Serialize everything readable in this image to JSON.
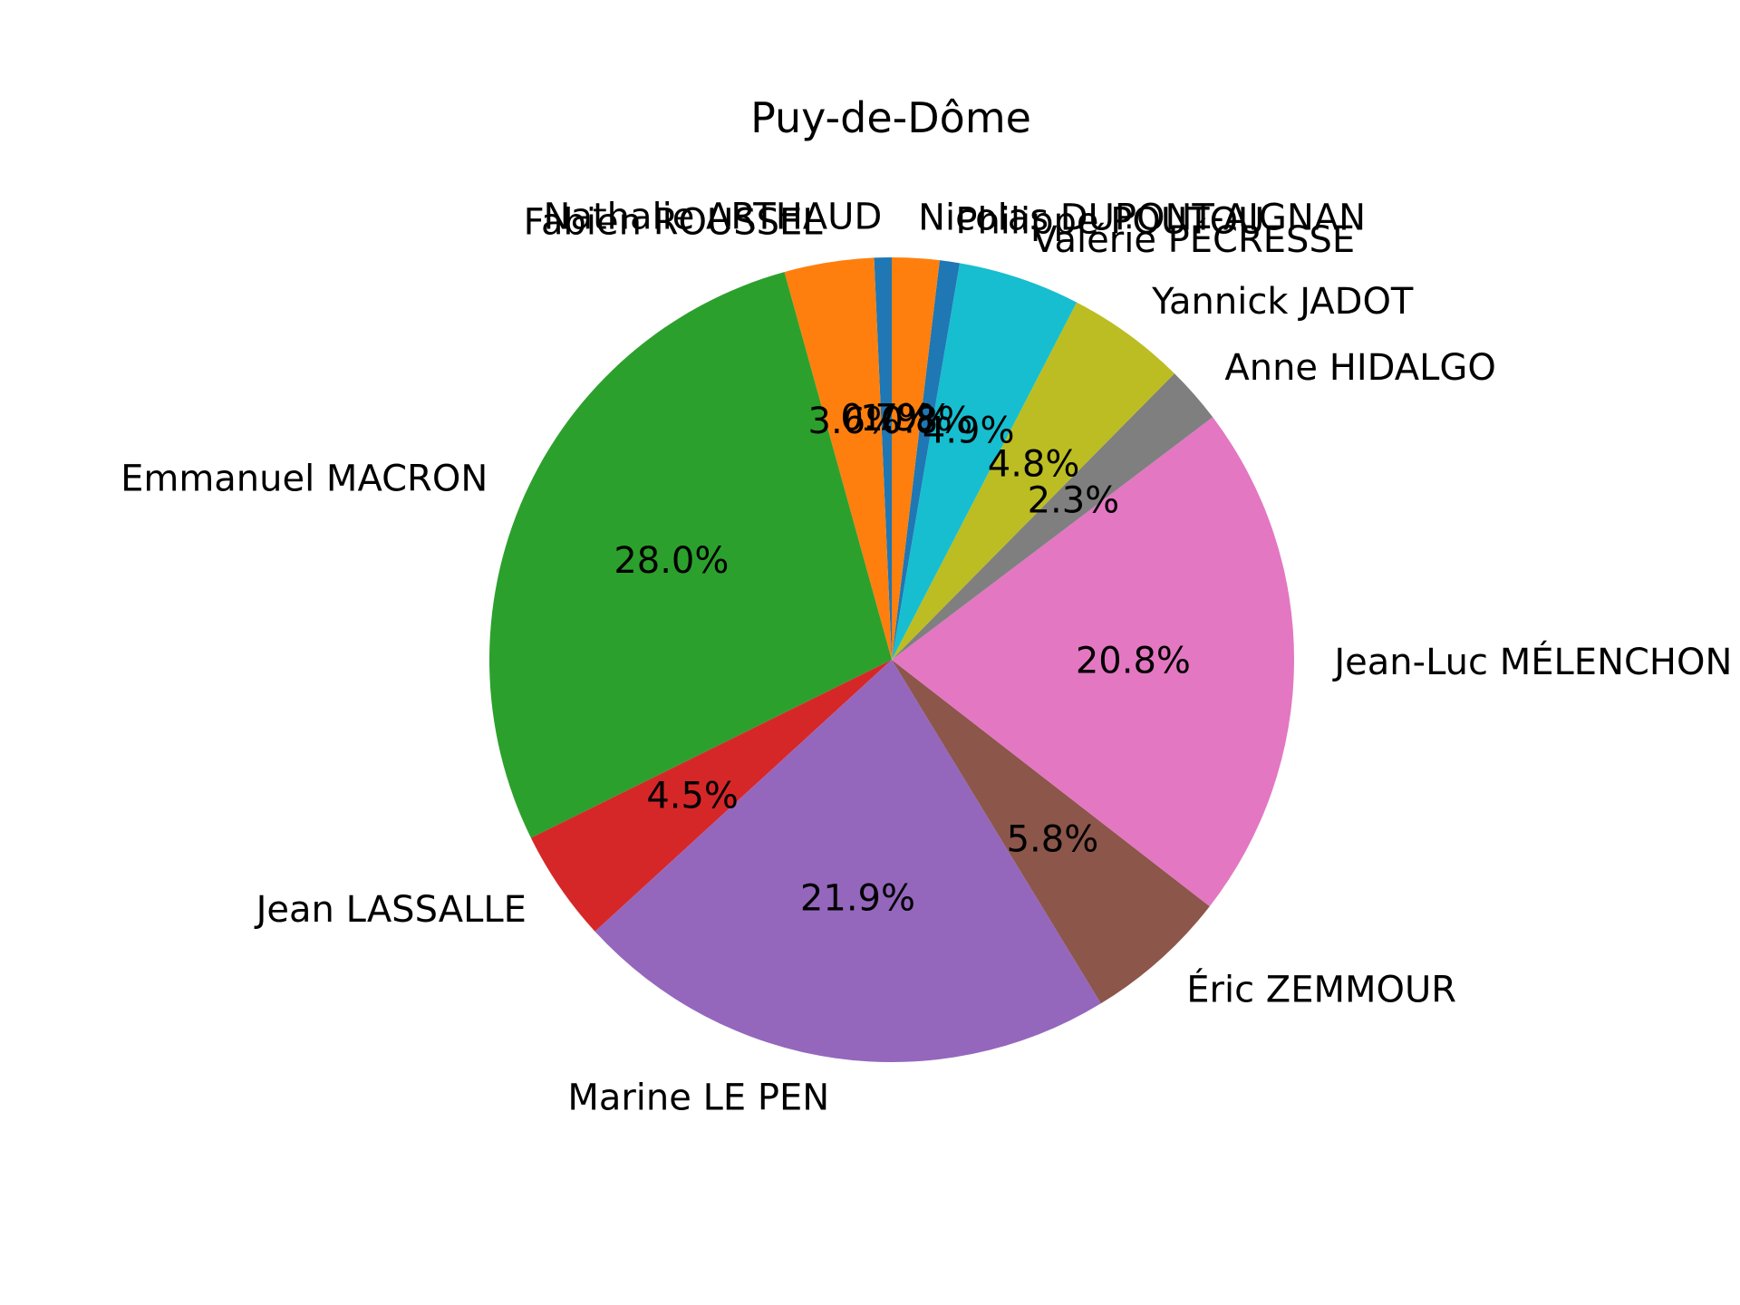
{
  "chart_data": {
    "type": "pie",
    "title": "Puy-de-Dôme",
    "slices": [
      {
        "label": "Nathalie ARTHAUD",
        "value": 0.7,
        "pct_label": "0.7%",
        "color": "#1f77b4"
      },
      {
        "label": "Fabien ROUSSEL",
        "value": 3.6,
        "pct_label": "3.6%",
        "color": "#ff7f0e"
      },
      {
        "label": "Emmanuel MACRON",
        "value": 28.0,
        "pct_label": "28.0%",
        "color": "#2ca02c"
      },
      {
        "label": "Jean LASSALLE",
        "value": 4.5,
        "pct_label": "4.5%",
        "color": "#d62728"
      },
      {
        "label": "Marine LE PEN",
        "value": 21.9,
        "pct_label": "21.9%",
        "color": "#9467bd"
      },
      {
        "label": "Éric ZEMMOUR",
        "value": 5.8,
        "pct_label": "5.8%",
        "color": "#8c564b"
      },
      {
        "label": "Jean-Luc MÉLENCHON",
        "value": 20.8,
        "pct_label": "20.8%",
        "color": "#e377c2"
      },
      {
        "label": "Anne HIDALGO",
        "value": 2.3,
        "pct_label": "2.3%",
        "color": "#7f7f7f"
      },
      {
        "label": "Yannick JADOT",
        "value": 4.8,
        "pct_label": "4.8%",
        "color": "#bcbd22"
      },
      {
        "label": "Valérie PÉCRESSE",
        "value": 4.9,
        "pct_label": "4.9%",
        "color": "#17becf"
      },
      {
        "label": "Philippe POUTOU",
        "value": 0.8,
        "pct_label": "0.8%",
        "color": "#1f77b4"
      },
      {
        "label": "Nicolas DUPONT-AIGNAN",
        "value": 1.9,
        "pct_label": "1.9%",
        "color": "#ff7f0e"
      }
    ],
    "start_angle_deg": 90,
    "direction": "counterclockwise"
  }
}
